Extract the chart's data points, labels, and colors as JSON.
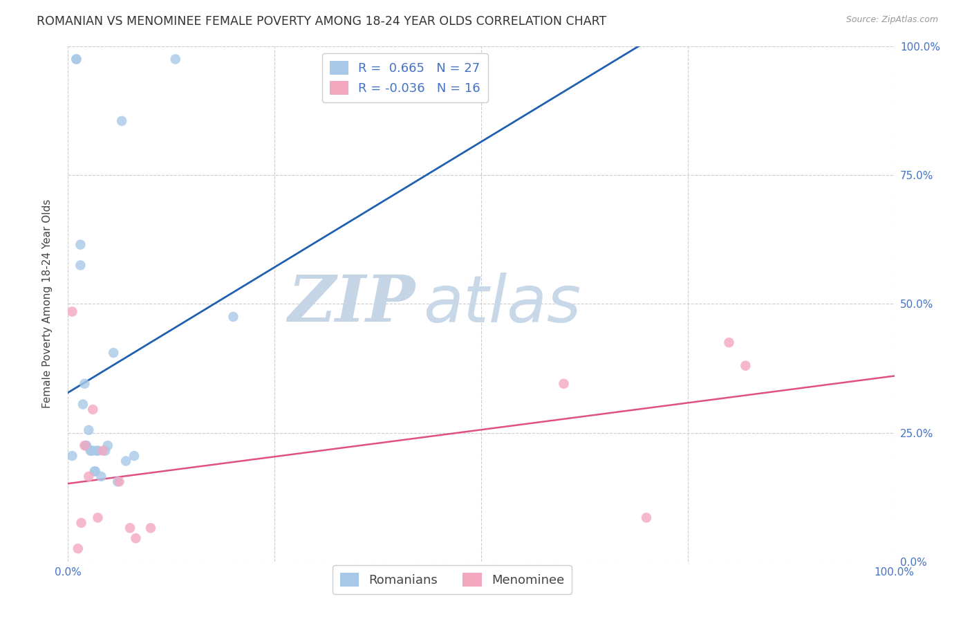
{
  "title": "ROMANIAN VS MENOMINEE FEMALE POVERTY AMONG 18-24 YEAR OLDS CORRELATION CHART",
  "source": "Source: ZipAtlas.com",
  "ylabel": "Female Poverty Among 18-24 Year Olds",
  "xlim": [
    0.0,
    1.0
  ],
  "ylim": [
    0.0,
    1.0
  ],
  "romanian_R": "0.665",
  "romanian_N": "27",
  "menominee_R": "-0.036",
  "menominee_N": "16",
  "romanian_color": "#A8C8E8",
  "menominee_color": "#F4A8C0",
  "romanian_line_color": "#2060B0",
  "menominee_line_color": "#E05080",
  "watermark_zip": "ZIP",
  "watermark_atlas": "atlas",
  "romanian_x": [
    0.005,
    0.01,
    0.01,
    0.015,
    0.015,
    0.018,
    0.02,
    0.022,
    0.022,
    0.025,
    0.027,
    0.028,
    0.03,
    0.032,
    0.033,
    0.035,
    0.036,
    0.04,
    0.045,
    0.048,
    0.055,
    0.06,
    0.065,
    0.07,
    0.08,
    0.13,
    0.2
  ],
  "romanian_y": [
    0.205,
    0.975,
    0.975,
    0.575,
    0.615,
    0.305,
    0.345,
    0.225,
    0.225,
    0.255,
    0.215,
    0.215,
    0.215,
    0.175,
    0.175,
    0.215,
    0.215,
    0.165,
    0.215,
    0.225,
    0.405,
    0.155,
    0.855,
    0.195,
    0.205,
    0.975,
    0.475
  ],
  "menominee_x": [
    0.005,
    0.012,
    0.016,
    0.02,
    0.025,
    0.03,
    0.036,
    0.042,
    0.062,
    0.075,
    0.082,
    0.1,
    0.6,
    0.7,
    0.8,
    0.82
  ],
  "menominee_y": [
    0.485,
    0.025,
    0.075,
    0.225,
    0.165,
    0.295,
    0.085,
    0.215,
    0.155,
    0.065,
    0.045,
    0.065,
    0.345,
    0.085,
    0.425,
    0.38
  ],
  "background_color": "#FFFFFF",
  "grid_color": "#CCCCCC",
  "title_fontsize": 12.5,
  "axis_label_fontsize": 11,
  "tick_fontsize": 11,
  "legend_fontsize": 13,
  "watermark_color_zip": "#C5D5E5",
  "watermark_color_atlas": "#C8D8E8",
  "watermark_fontsize": 68,
  "ytick_positions": [
    0.0,
    0.25,
    0.5,
    0.75,
    1.0
  ],
  "ytick_labels_right": [
    "0.0%",
    "25.0%",
    "50.0%",
    "75.0%",
    "100.0%"
  ],
  "xtick_positions": [
    0.0,
    0.25,
    0.5,
    0.75,
    1.0
  ],
  "xtick_labels": [
    "0.0%",
    "",
    "",
    "",
    "100.0%"
  ]
}
